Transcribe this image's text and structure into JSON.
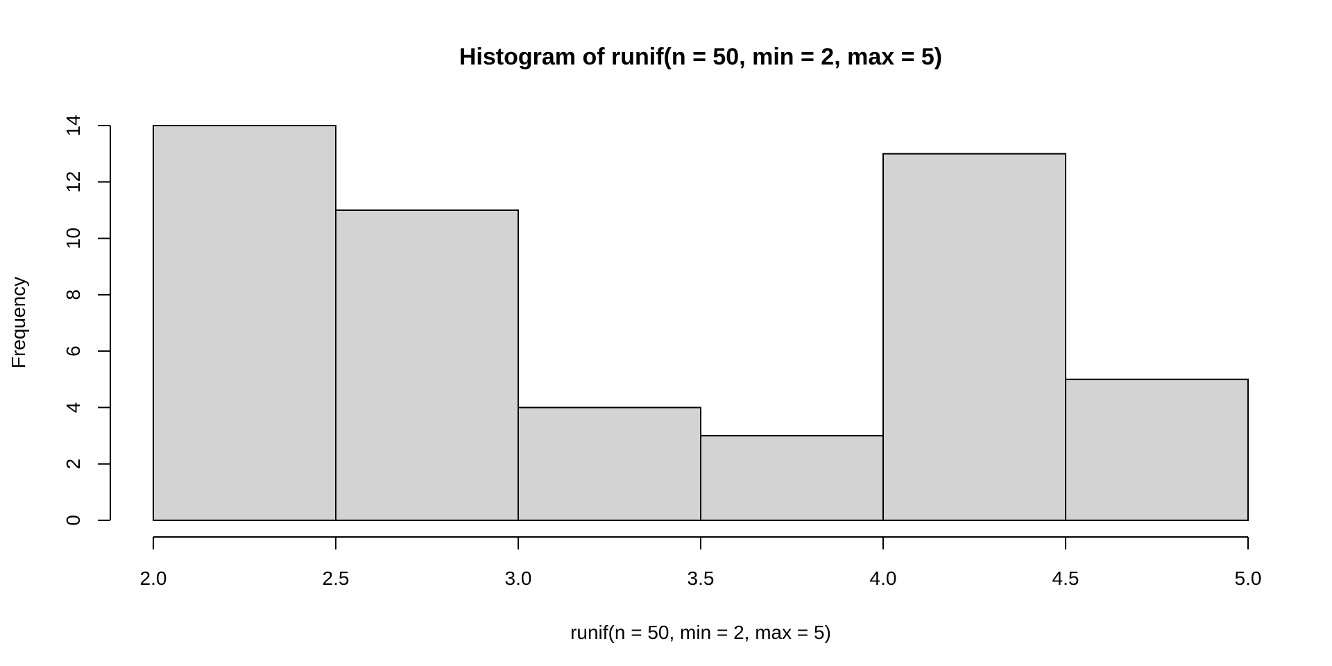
{
  "chart_data": {
    "type": "bar",
    "title": "Histogram of runif(n = 50, min = 2, max = 5)",
    "xlabel": "runif(n = 50, min = 2, max = 5)",
    "ylabel": "Frequency",
    "bins": [
      {
        "start": 2.0,
        "end": 2.5,
        "count": 14
      },
      {
        "start": 2.5,
        "end": 3.0,
        "count": 11
      },
      {
        "start": 3.0,
        "end": 3.5,
        "count": 4
      },
      {
        "start": 3.5,
        "end": 4.0,
        "count": 3
      },
      {
        "start": 4.0,
        "end": 4.5,
        "count": 13
      },
      {
        "start": 4.5,
        "end": 5.0,
        "count": 5
      }
    ],
    "x_ticks": [
      "2.0",
      "2.5",
      "3.0",
      "3.5",
      "4.0",
      "4.5",
      "5.0"
    ],
    "y_ticks": [
      "0",
      "2",
      "4",
      "6",
      "8",
      "10",
      "12",
      "14"
    ],
    "xlim": [
      2.0,
      5.0
    ],
    "ylim": [
      0,
      14
    ],
    "grid": false,
    "bar_color": "#d3d3d3",
    "edge_color": "#000000"
  }
}
